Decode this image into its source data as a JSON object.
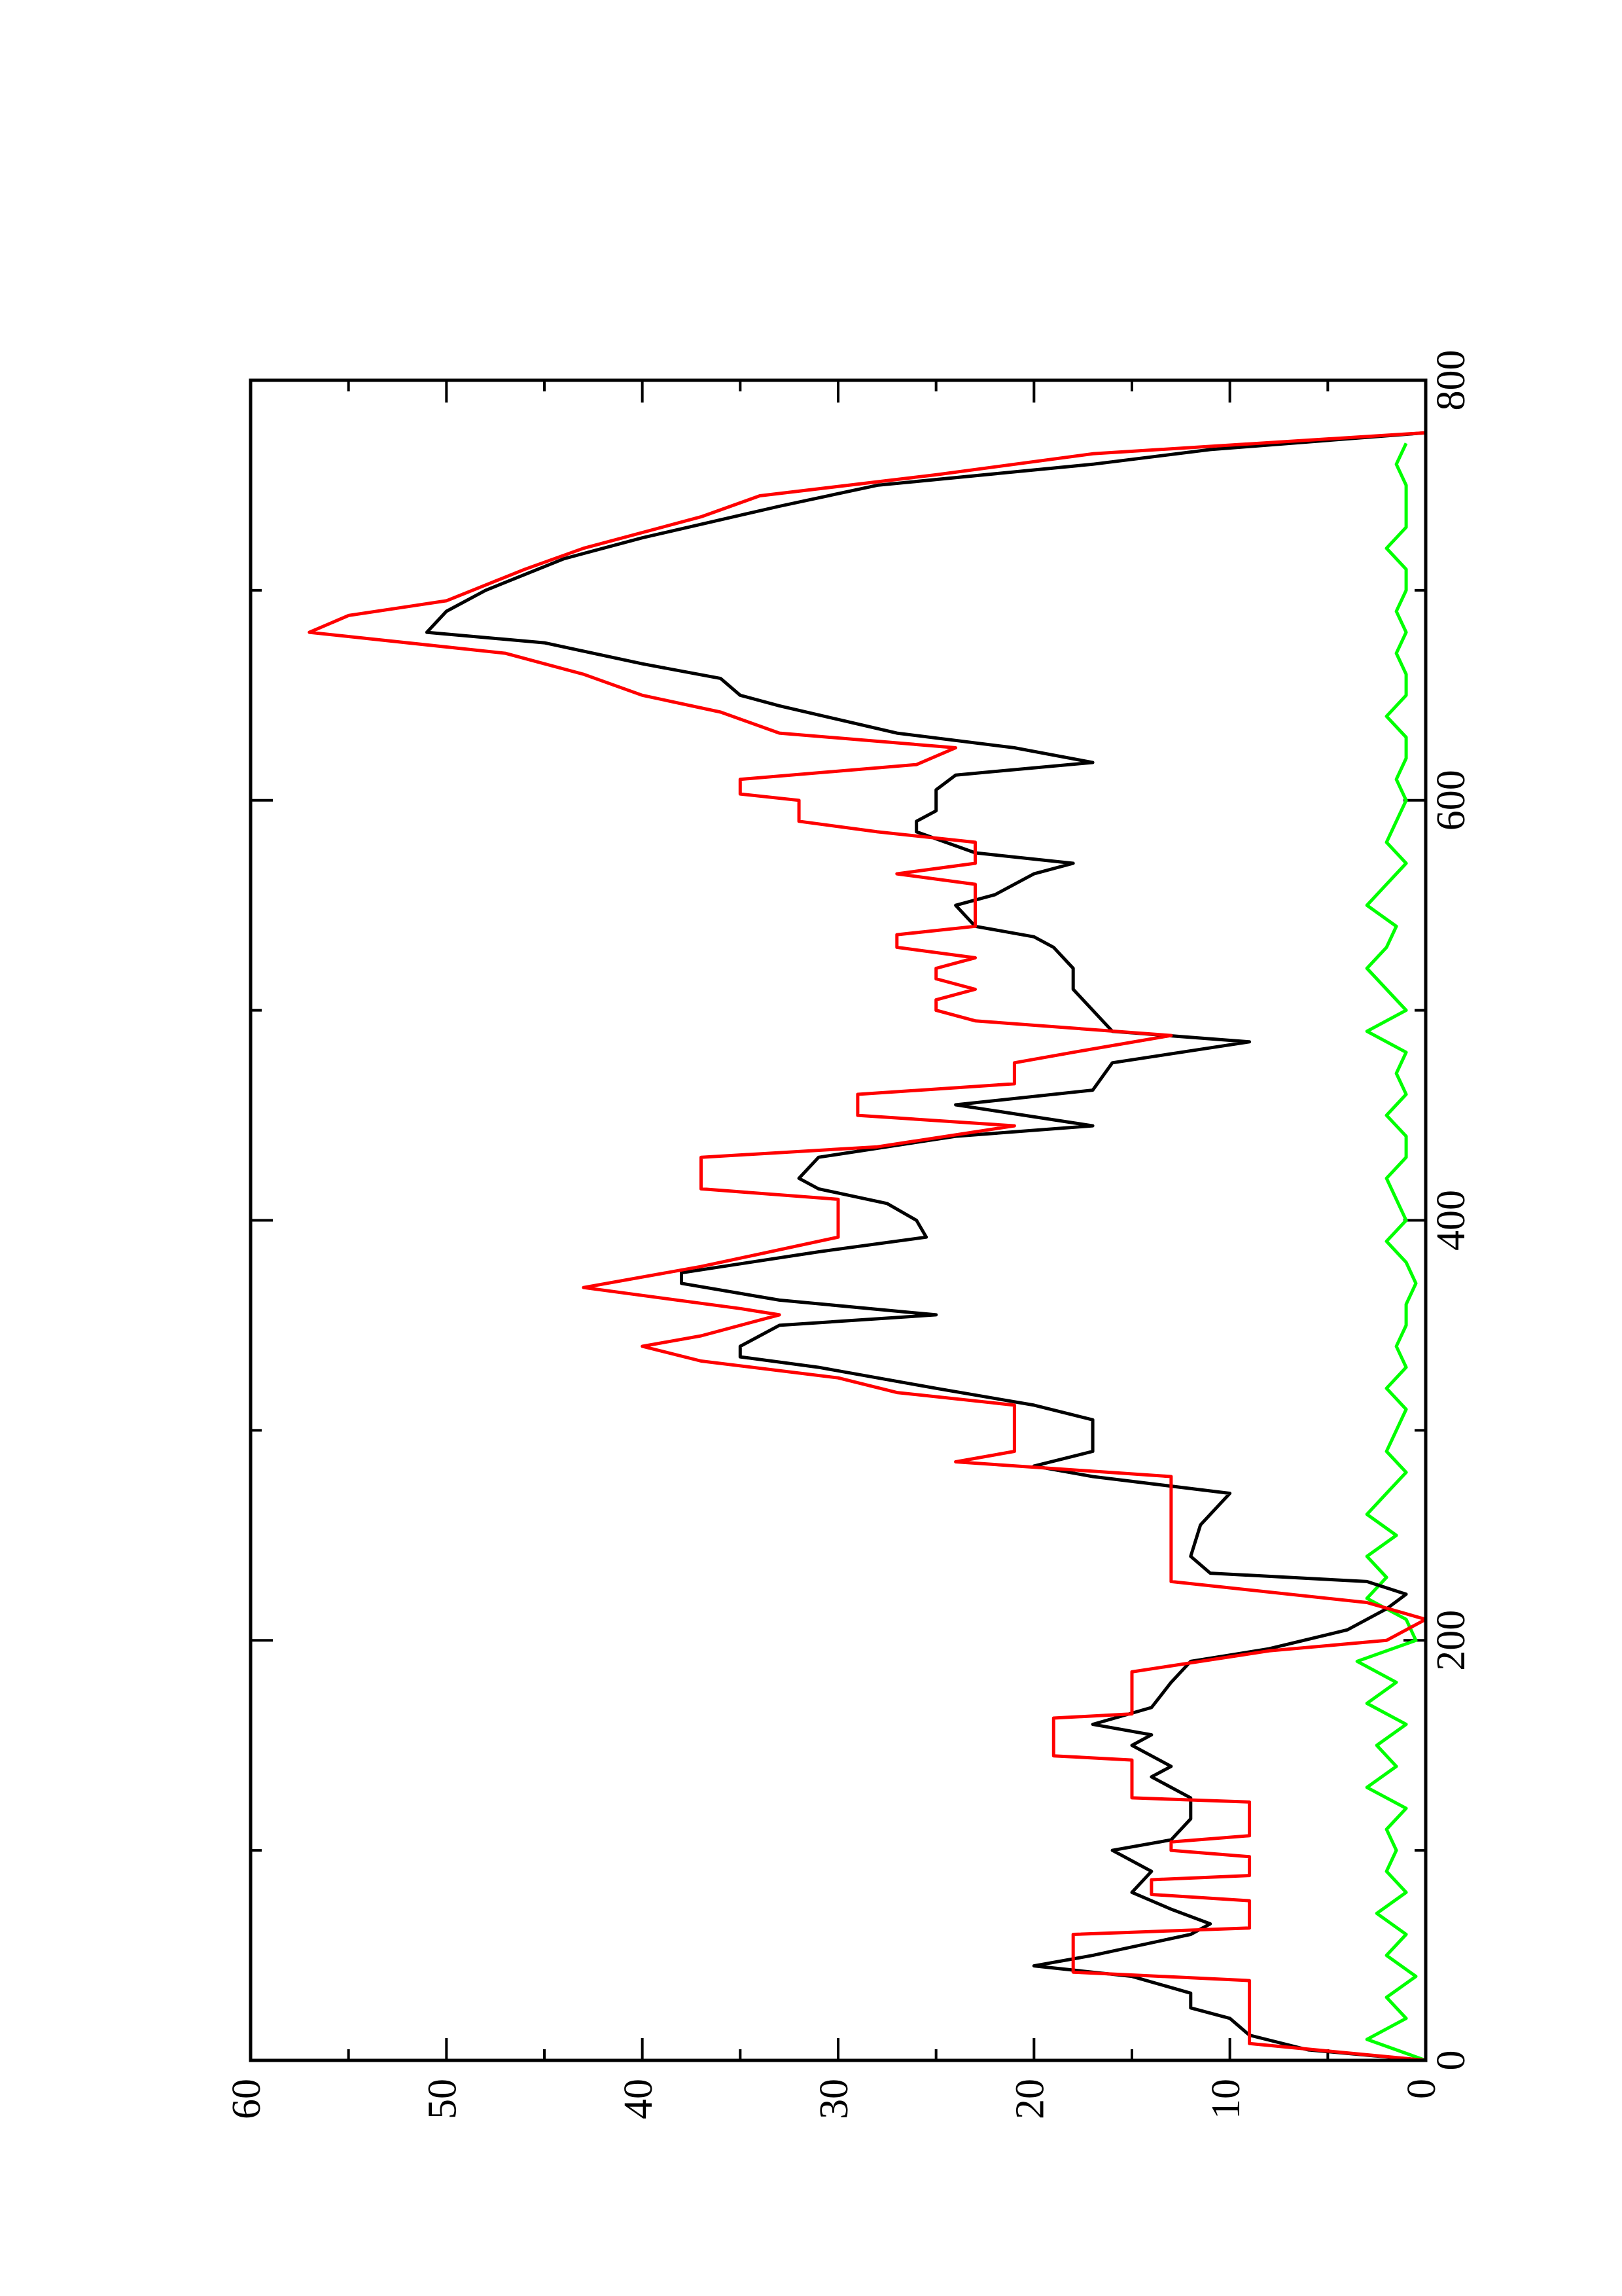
{
  "chart_data": {
    "type": "line",
    "series": [
      {
        "color": "#000000",
        "x": [
          0,
          5,
          12,
          20,
          25,
          32,
          40,
          45,
          50,
          60,
          65,
          72,
          80,
          90,
          100,
          105,
          115,
          125,
          135,
          140,
          150,
          155,
          160,
          168,
          180,
          190,
          196,
          205,
          215,
          222,
          228,
          232,
          240,
          255,
          270,
          278,
          283,
          290,
          305,
          312,
          320,
          330,
          335,
          340,
          350,
          355,
          362,
          370,
          375,
          385,
          392,
          400,
          408,
          415,
          420,
          430,
          440,
          445,
          455,
          462,
          475,
          485,
          490,
          500,
          510,
          520,
          530,
          535,
          540,
          550,
          555,
          565,
          570,
          575,
          585,
          590,
          595,
          605,
          612,
          618,
          625,
          632,
          645,
          650,
          658,
          665,
          675,
          680,
          690,
          700,
          715,
          725,
          740,
          750,
          760,
          767,
          775
        ],
        "values": [
          0,
          6,
          9,
          10,
          12,
          12,
          15,
          20,
          17,
          12,
          11,
          13,
          15,
          14,
          16,
          13,
          12,
          12,
          14,
          13,
          15,
          14,
          17,
          14,
          13,
          12,
          8,
          4,
          2,
          1,
          3,
          11,
          12,
          11.5,
          10,
          17,
          20,
          17,
          17,
          20,
          25,
          31,
          35,
          35,
          33,
          25,
          33,
          38,
          38,
          31,
          25.5,
          26,
          27.5,
          31,
          32,
          31,
          24,
          17,
          24,
          17,
          16,
          9,
          16,
          17,
          18,
          18,
          19,
          20,
          23,
          24,
          22,
          20,
          18,
          23,
          26,
          26,
          25,
          25,
          24,
          17,
          21,
          27,
          33,
          35,
          36,
          40,
          45,
          51,
          50,
          48,
          44,
          40,
          33,
          28,
          17,
          11,
          0
        ]
      },
      {
        "color": "#ff0000",
        "x": [
          0,
          8,
          38,
          42,
          60,
          63,
          76,
          79,
          86,
          88,
          97,
          100,
          104,
          107,
          123,
          125,
          143,
          145,
          163,
          165,
          185,
          195,
          200,
          210,
          218,
          228,
          278,
          285,
          290,
          312,
          318,
          325,
          333,
          340,
          345,
          355,
          358,
          368,
          378,
          392,
          410,
          415,
          430,
          435,
          445,
          450,
          460,
          465,
          475,
          480,
          488,
          495,
          500,
          505,
          510,
          515,
          520,
          525,
          530,
          536,
          540,
          560,
          565,
          570,
          580,
          585,
          590,
          600,
          603,
          610,
          617,
          625,
          632,
          642,
          650,
          660,
          670,
          680,
          688,
          695,
          710,
          720,
          735,
          745,
          755,
          765,
          775
        ],
        "values": [
          0,
          9,
          9,
          18,
          18,
          9,
          9,
          14,
          14,
          9,
          9,
          13,
          13,
          9,
          9,
          15,
          15,
          19,
          19,
          15,
          15,
          8,
          2,
          0,
          3,
          13,
          13,
          24,
          21,
          21,
          27,
          30,
          37,
          40,
          37,
          33,
          35,
          43,
          37,
          30,
          30,
          37,
          37,
          28,
          21,
          29,
          29,
          21,
          21,
          18,
          13,
          23,
          25,
          25,
          23,
          25,
          25,
          23,
          27,
          27,
          23,
          23,
          27,
          23,
          23,
          28,
          32,
          32,
          35,
          35,
          26,
          24,
          33,
          36,
          40,
          43,
          47,
          57,
          55,
          50,
          46,
          43,
          37,
          34,
          25,
          17,
          0
        ]
      },
      {
        "color": "#00ff00",
        "x": [
          0,
          10,
          20,
          30,
          40,
          50,
          60,
          70,
          80,
          90,
          100,
          110,
          120,
          130,
          140,
          150,
          160,
          170,
          180,
          190,
          200,
          210,
          220,
          230,
          240,
          250,
          260,
          270,
          280,
          290,
          300,
          310,
          320,
          330,
          340,
          350,
          360,
          370,
          380,
          390,
          400,
          410,
          420,
          430,
          440,
          450,
          460,
          470,
          480,
          490,
          500,
          510,
          520,
          530,
          540,
          550,
          560,
          570,
          580,
          590,
          600,
          610,
          620,
          630,
          640,
          650,
          660,
          670,
          680,
          690,
          700,
          710,
          720,
          730,
          740,
          750,
          760,
          770
        ],
        "values": [
          0,
          3,
          1,
          2,
          0.5,
          2,
          1,
          2.5,
          1,
          2,
          1.5,
          2,
          1,
          3,
          1.5,
          2.5,
          1,
          3,
          1.5,
          3.5,
          0.5,
          1,
          3,
          2,
          3,
          1.5,
          3,
          2,
          1,
          2,
          1.5,
          1,
          2,
          1,
          1.5,
          1,
          1,
          0.5,
          1,
          2,
          1,
          1.5,
          2,
          1,
          1,
          2,
          1,
          1.5,
          1,
          3,
          1,
          2,
          3,
          2,
          1.5,
          3,
          2,
          1,
          2,
          1.5,
          1,
          1.5,
          1,
          1,
          2,
          1,
          1,
          1.5,
          1,
          1.5,
          1,
          1,
          2,
          1,
          1,
          1,
          1.5,
          1
        ]
      }
    ],
    "xlim": [
      0,
      800
    ],
    "xticks": [
      0,
      200,
      400,
      600,
      800
    ],
    "xminor": [
      100,
      300,
      500,
      700
    ],
    "ylim": [
      0,
      60
    ],
    "yticks": [
      0,
      10,
      20,
      30,
      40,
      50,
      60
    ],
    "yminor": [
      5,
      15,
      25,
      35,
      45,
      55
    ]
  }
}
